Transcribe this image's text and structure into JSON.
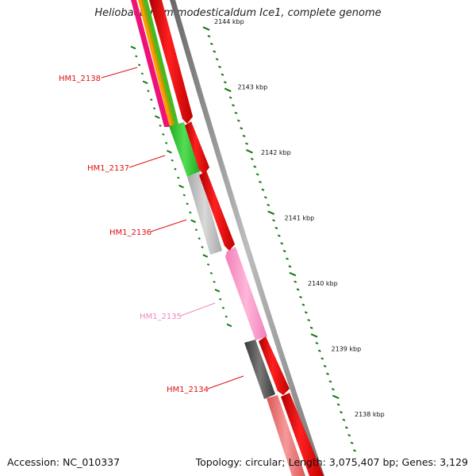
{
  "header": {
    "title": "Heliobacterium modesticaldum Ice1, complete genome"
  },
  "footer": {
    "accession": "Accession: NC_010337",
    "summary": "Topology: circular; Length: 3,075,407 bp; Genes: 3,129"
  },
  "ruler": {
    "unit": "kbp",
    "tick_labels": [
      "2144 kbp",
      "2143 kbp",
      "2142 kbp",
      "2141 kbp",
      "2140 kbp",
      "2139 kbp",
      "2138 kbp"
    ]
  },
  "gene_labels": [
    {
      "name": "HM1_2138",
      "color": "#dd1111"
    },
    {
      "name": "HM1_2137",
      "color": "#dd1111"
    },
    {
      "name": "HM1_2136",
      "color": "#dd1111"
    },
    {
      "name": "HM1_2135",
      "color": "#ee88bb"
    },
    {
      "name": "HM1_2134",
      "color": "#dd1111"
    }
  ],
  "colors": {
    "forward_strand": "#ff0000",
    "backbone": "#888888",
    "ruler_ticks": "#117711",
    "hm1_2137": "#33cc33",
    "hm1_2136": "#c0c0c0",
    "hm1_2135": "#ff99cc",
    "hm1_2134": "#555555",
    "next_gene": "#ee7777"
  }
}
